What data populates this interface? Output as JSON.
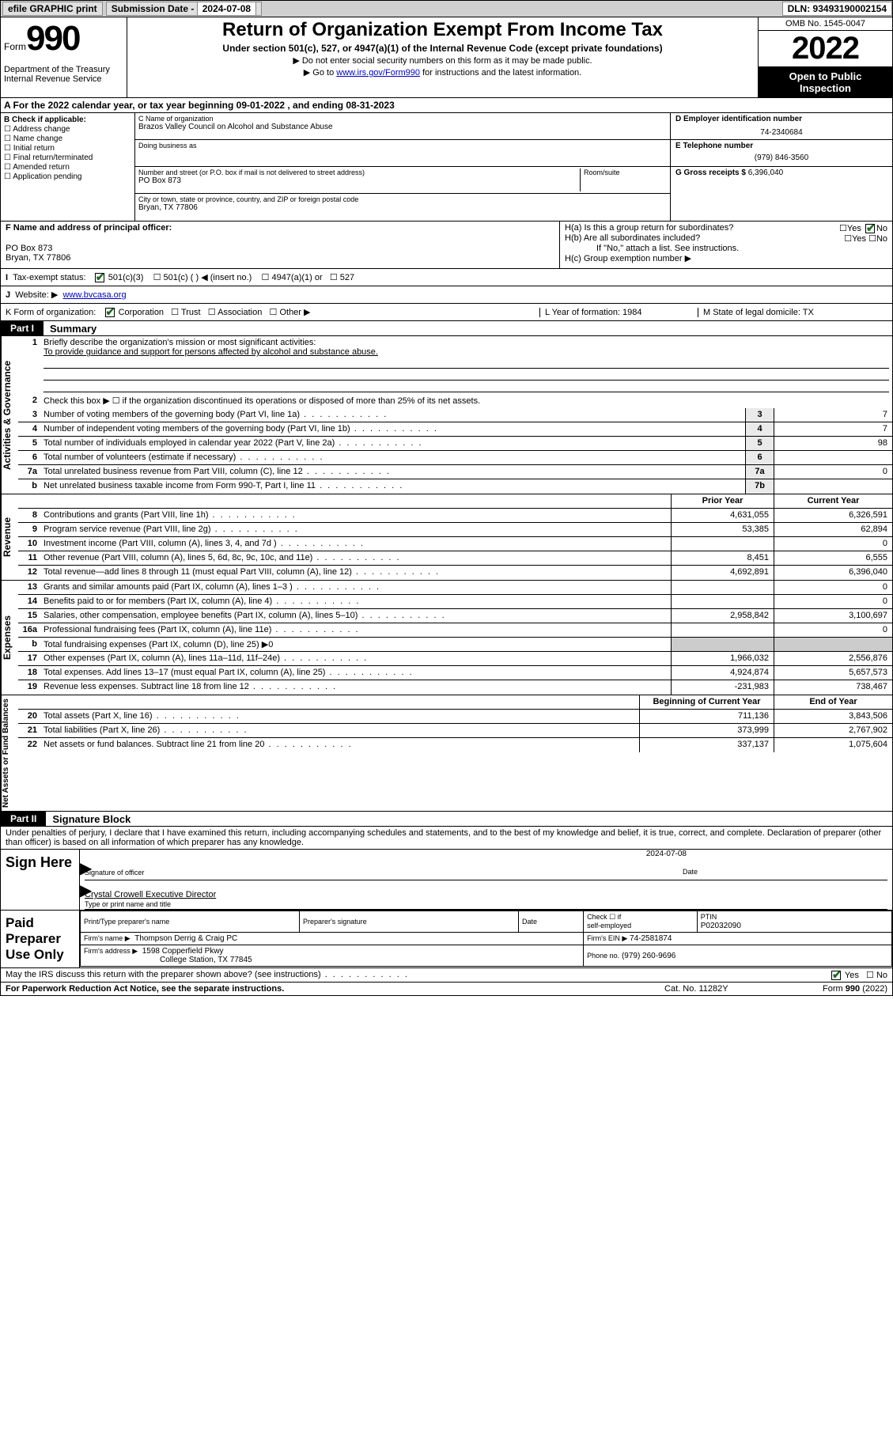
{
  "topbar": {
    "efile": "efile GRAPHIC print",
    "sublabel": "Submission Date - ",
    "subdate": "2024-07-08",
    "dln": "DLN: 93493190002154"
  },
  "header": {
    "form": "Form",
    "formnum": "990",
    "dept": "Department of the Treasury",
    "irs": "Internal Revenue Service",
    "title": "Return of Organization Exempt From Income Tax",
    "sub": "Under section 501(c), 527, or 4947(a)(1) of the Internal Revenue Code (except private foundations)",
    "line1": "▶ Do not enter social security numbers on this form as it may be made public.",
    "line2a": "▶ Go to ",
    "line2link": "www.irs.gov/Form990",
    "line2b": " for instructions and the latest information.",
    "omb": "OMB No. 1545-0047",
    "year": "2022",
    "open1": "Open to Public",
    "open2": "Inspection"
  },
  "rowA": "A For the 2022 calendar year, or tax year beginning 09-01-2022    , and ending 08-31-2023",
  "B": {
    "hdr": "B Check if applicable:",
    "items": [
      "Address change",
      "Name change",
      "Initial return",
      "Final return/terminated",
      "Amended return",
      "Application pending"
    ]
  },
  "C": {
    "namelbl": "C Name of organization",
    "name": "Brazos Valley Council on Alcohol and Substance Abuse",
    "dba": "Doing business as",
    "addrlbl": "Number and street (or P.O. box if mail is not delivered to street address)",
    "room": "Room/suite",
    "addr": "PO Box 873",
    "citylbl": "City or town, state or province, country, and ZIP or foreign postal code",
    "city": "Bryan, TX  77806"
  },
  "D": {
    "lbl": "D Employer identification number",
    "val": "74-2340684"
  },
  "E": {
    "lbl": "E Telephone number",
    "val": "(979) 846-3560"
  },
  "G": {
    "lbl": "G Gross receipts $",
    "val": "6,396,040"
  },
  "F": {
    "lbl": "F  Name and address of principal officer:",
    "addr1": "PO Box 873",
    "addr2": "Bryan, TX  77806"
  },
  "H": {
    "a": "H(a)  Is this a group return for subordinates?",
    "b": "H(b)  Are all subordinates included?",
    "bnote": "If \"No,\" attach a list. See instructions.",
    "c": "H(c)  Group exemption number ▶",
    "yes": "Yes",
    "no": "No"
  },
  "I": {
    "lbl": "Tax-exempt status:",
    "opts": [
      "501(c)(3)",
      "501(c) (  ) ◀ (insert no.)",
      "4947(a)(1) or",
      "527"
    ]
  },
  "J": {
    "lbl": "Website: ▶",
    "val": "www.bvcasa.org"
  },
  "K": {
    "lbl": "K Form of organization:",
    "opts": [
      "Corporation",
      "Trust",
      "Association",
      "Other ▶"
    ],
    "L": "L Year of formation: 1984",
    "M": "M State of legal domicile: TX"
  },
  "partI": {
    "tag": "Part I",
    "title": "Summary"
  },
  "partII": {
    "tag": "Part II",
    "title": "Signature Block"
  },
  "gov": {
    "q1lbl": "Briefly describe the organization's mission or most significant activities:",
    "q1txt": "To provide guidance and support for persons affected by alcohol and substance abuse.",
    "q2": "Check this box ▶ ☐  if the organization discontinued its operations or disposed of more than 25% of its net assets.",
    "rows": [
      {
        "n": "3",
        "d": "Number of voting members of the governing body (Part VI, line 1a)",
        "b": "3",
        "v": "7"
      },
      {
        "n": "4",
        "d": "Number of independent voting members of the governing body (Part VI, line 1b)",
        "b": "4",
        "v": "7"
      },
      {
        "n": "5",
        "d": "Total number of individuals employed in calendar year 2022 (Part V, line 2a)",
        "b": "5",
        "v": "98"
      },
      {
        "n": "6",
        "d": "Total number of volunteers (estimate if necessary)",
        "b": "6",
        "v": ""
      },
      {
        "n": "7a",
        "d": "Total unrelated business revenue from Part VIII, column (C), line 12",
        "b": "7a",
        "v": "0"
      },
      {
        "n": "b",
        "d": "Net unrelated business taxable income from Form 990-T, Part I, line 11",
        "b": "7b",
        "v": ""
      }
    ]
  },
  "rev": {
    "hdr": {
      "prior": "Prior Year",
      "curr": "Current Year"
    },
    "rows": [
      {
        "n": "8",
        "d": "Contributions and grants (Part VIII, line 1h)",
        "p": "4,631,055",
        "c": "6,326,591"
      },
      {
        "n": "9",
        "d": "Program service revenue (Part VIII, line 2g)",
        "p": "53,385",
        "c": "62,894"
      },
      {
        "n": "10",
        "d": "Investment income (Part VIII, column (A), lines 3, 4, and 7d )",
        "p": "",
        "c": "0"
      },
      {
        "n": "11",
        "d": "Other revenue (Part VIII, column (A), lines 5, 6d, 8c, 9c, 10c, and 11e)",
        "p": "8,451",
        "c": "6,555"
      },
      {
        "n": "12",
        "d": "Total revenue—add lines 8 through 11 (must equal Part VIII, column (A), line 12)",
        "p": "4,692,891",
        "c": "6,396,040"
      }
    ]
  },
  "exp": {
    "rows": [
      {
        "n": "13",
        "d": "Grants and similar amounts paid (Part IX, column (A), lines 1–3 )",
        "p": "",
        "c": "0"
      },
      {
        "n": "14",
        "d": "Benefits paid to or for members (Part IX, column (A), line 4)",
        "p": "",
        "c": "0"
      },
      {
        "n": "15",
        "d": "Salaries, other compensation, employee benefits (Part IX, column (A), lines 5–10)",
        "p": "2,958,842",
        "c": "3,100,697"
      },
      {
        "n": "16a",
        "d": "Professional fundraising fees (Part IX, column (A), line 11e)",
        "p": "",
        "c": "0"
      },
      {
        "n": "b",
        "d": "Total fundraising expenses (Part IX, column (D), line 25) ▶0",
        "grey": true
      },
      {
        "n": "17",
        "d": "Other expenses (Part IX, column (A), lines 11a–11d, 11f–24e)",
        "p": "1,966,032",
        "c": "2,556,876"
      },
      {
        "n": "18",
        "d": "Total expenses. Add lines 13–17 (must equal Part IX, column (A), line 25)",
        "p": "4,924,874",
        "c": "5,657,573"
      },
      {
        "n": "19",
        "d": "Revenue less expenses. Subtract line 18 from line 12",
        "p": "-231,983",
        "c": "738,467"
      }
    ]
  },
  "net": {
    "hdr": {
      "prior": "Beginning of Current Year",
      "curr": "End of Year"
    },
    "rows": [
      {
        "n": "20",
        "d": "Total assets (Part X, line 16)",
        "p": "711,136",
        "c": "3,843,506"
      },
      {
        "n": "21",
        "d": "Total liabilities (Part X, line 26)",
        "p": "373,999",
        "c": "2,767,902"
      },
      {
        "n": "22",
        "d": "Net assets or fund balances. Subtract line 21 from line 20",
        "p": "337,137",
        "c": "1,075,604"
      }
    ]
  },
  "sideLabels": {
    "gov": "Activities & Governance",
    "rev": "Revenue",
    "exp": "Expenses",
    "net": "Net Assets or Fund Balances"
  },
  "sigdecl": "Under penalties of perjury, I declare that I have examined this return, including accompanying schedules and statements, and to the best of my knowledge and belief, it is true, correct, and complete. Declaration of preparer (other than officer) is based on all information of which preparer has any knowledge.",
  "sign": {
    "here": "Sign Here",
    "sigoff": "Signature of officer",
    "date": "Date",
    "dateval": "2024-07-08",
    "name": "Crystal Crowell  Executive Director",
    "typelbl": "Type or print name and title"
  },
  "paid": {
    "lbl": "Paid Preparer Use Only",
    "h1": "Print/Type preparer's name",
    "h2": "Preparer's signature",
    "h3": "Date",
    "h4a": "Check ☐ if",
    "h4b": "self-employed",
    "h5": "PTIN",
    "ptin": "P02032090",
    "firmname_lbl": "Firm's name      ▶",
    "firmname": "Thompson Derrig & Craig PC",
    "firmein_lbl": "Firm's EIN ▶",
    "firmein": "74-2581874",
    "firmaddr_lbl": "Firm's address ▶",
    "firmaddr1": "1598 Copperfield Pkwy",
    "firmaddr2": "College Station, TX  77845",
    "phone_lbl": "Phone no.",
    "phone": "(979) 260-9696"
  },
  "discuss": "May the IRS discuss this return with the preparer shown above? (see instructions)",
  "footer": {
    "left": "For Paperwork Reduction Act Notice, see the separate instructions.",
    "mid": "Cat. No. 11282Y",
    "right": "Form 990 (2022)"
  }
}
